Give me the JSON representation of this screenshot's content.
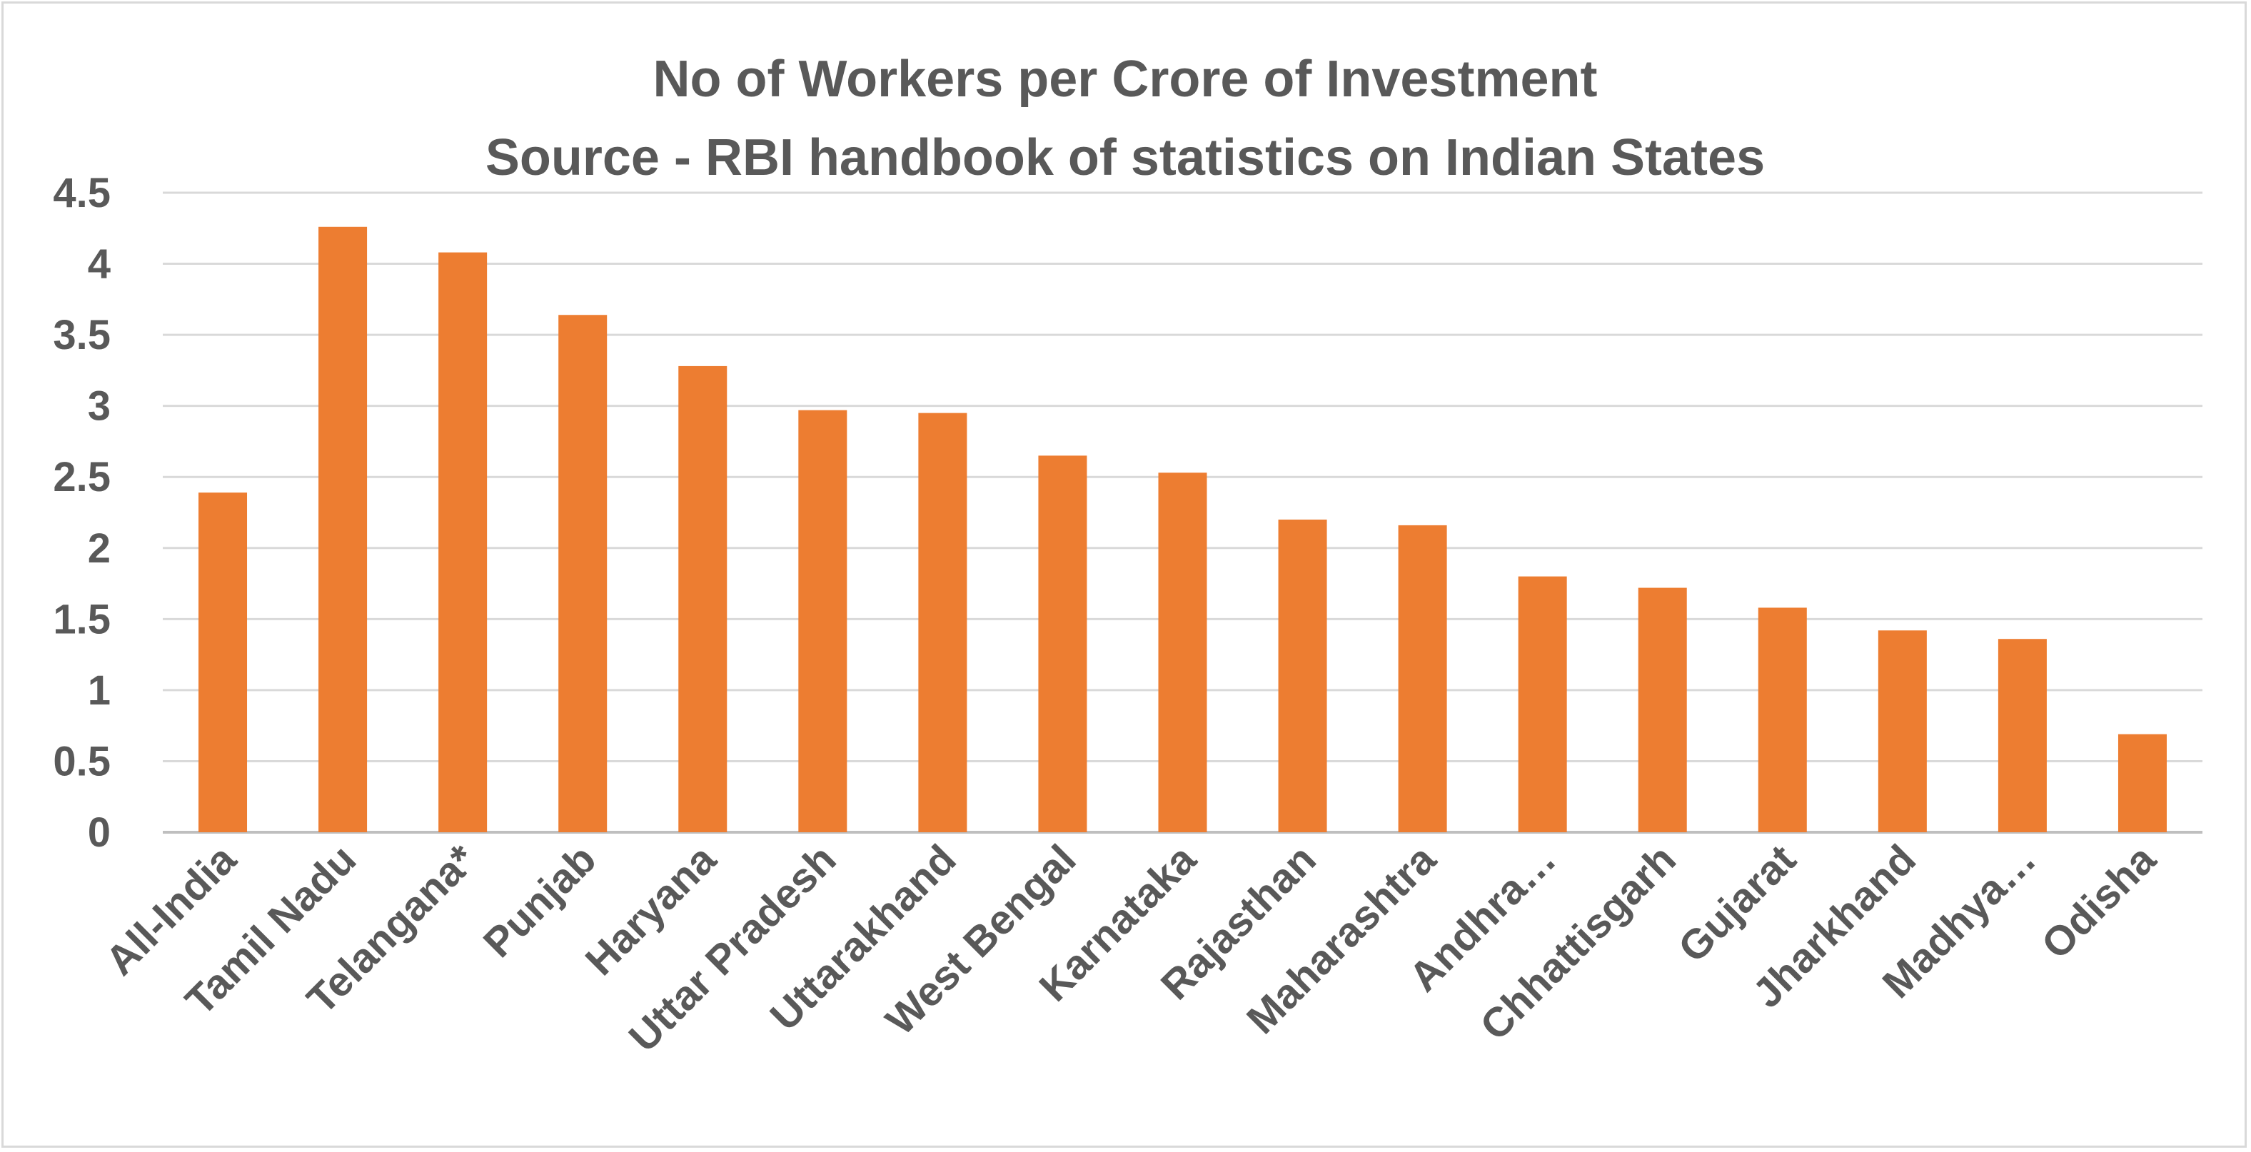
{
  "chart_data": {
    "type": "bar",
    "title": "No of Workers per Crore of Investment",
    "subtitle": "Source - RBI handbook of statistics on Indian States",
    "xlabel": "",
    "ylabel": "",
    "ylim": [
      0,
      4.5
    ],
    "yticks": [
      "0",
      "0.5",
      "1",
      "1.5",
      "2",
      "2.5",
      "3",
      "3.5",
      "4",
      "4.5"
    ],
    "grid": true,
    "legend": "none",
    "bar_color": "#ed7d31",
    "categories": [
      "All-India",
      "Tamil Nadu",
      "Telangana*",
      "Punjab",
      "Haryana",
      "Uttar Pradesh",
      "Uttarakhand",
      "West Bengal",
      "Karnataka",
      "Rajasthan",
      "Maharashtra",
      "Andhra…",
      "Chhattisgarh",
      "Gujarat",
      "Jharkhand",
      "Madhya…",
      "Odisha"
    ],
    "values": [
      2.39,
      4.26,
      4.08,
      3.64,
      3.28,
      2.97,
      2.95,
      2.65,
      2.53,
      2.2,
      2.16,
      1.8,
      1.72,
      1.58,
      1.42,
      1.36,
      0.69
    ]
  }
}
